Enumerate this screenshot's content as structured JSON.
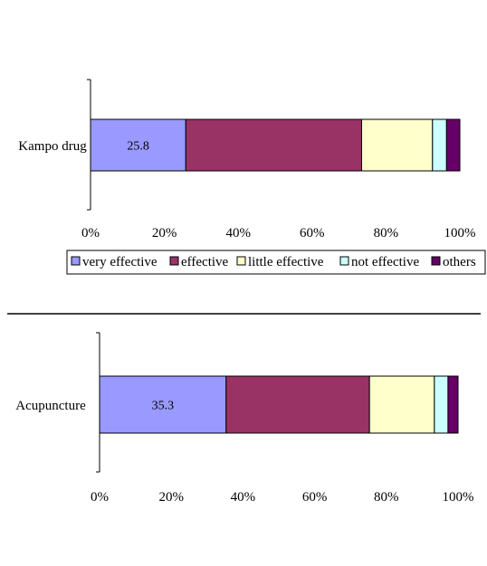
{
  "chart_data": [
    {
      "type": "bar",
      "orientation": "horizontal",
      "stacked": true,
      "percent": true,
      "categories": [
        "Kampo drug"
      ],
      "series": [
        {
          "name": "very effective",
          "values": [
            25.8
          ],
          "label": "25.8"
        },
        {
          "name": "effective",
          "values": [
            47.6
          ]
        },
        {
          "name": "little effective",
          "values": [
            19.2
          ]
        },
        {
          "name": "not effective",
          "values": [
            3.8
          ]
        },
        {
          "name": "others",
          "values": [
            3.6
          ]
        }
      ],
      "xlim": [
        0,
        100
      ],
      "xticks": [
        "0%",
        "20%",
        "40%",
        "60%",
        "80%",
        "100%"
      ],
      "grid": false,
      "legend": "bottom"
    },
    {
      "type": "bar",
      "orientation": "horizontal",
      "stacked": true,
      "percent": true,
      "categories": [
        "Acupuncture"
      ],
      "series": [
        {
          "name": "very effective",
          "values": [
            35.3
          ],
          "label": "35.3"
        },
        {
          "name": "effective",
          "values": [
            40.0
          ]
        },
        {
          "name": "little effective",
          "values": [
            18.1
          ]
        },
        {
          "name": "not effective",
          "values": [
            3.8
          ]
        },
        {
          "name": "others",
          "values": [
            2.8
          ]
        }
      ],
      "xlim": [
        0,
        100
      ],
      "xticks": [
        "0%",
        "20%",
        "40%",
        "60%",
        "80%",
        "100%"
      ],
      "grid": false,
      "legend": "none"
    }
  ],
  "colors": {
    "very effective": "#9999ff",
    "effective": "#993366",
    "little effective": "#ffffcc",
    "not effective": "#ccffff",
    "others": "#660066"
  }
}
